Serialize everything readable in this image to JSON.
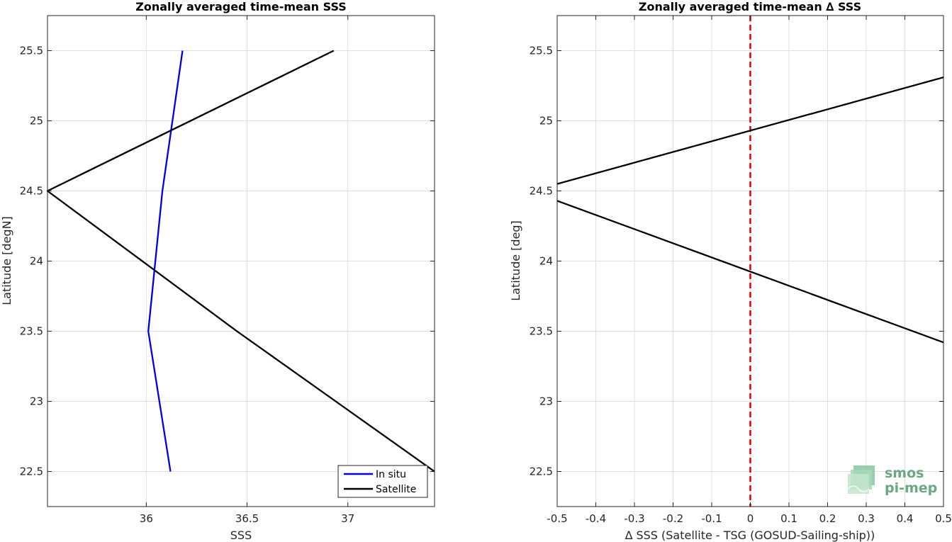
{
  "chart_data": [
    {
      "type": "line",
      "title": "Zonally averaged time-mean SSS",
      "xlabel": "SSS",
      "ylabel": "Latitude [degN]",
      "xlim": [
        35.51,
        37.43
      ],
      "ylim": [
        22.25,
        25.75
      ],
      "xticks": [
        36,
        36.5,
        37
      ],
      "xtick_labels": [
        "36",
        "36.5",
        "37"
      ],
      "yticks": [
        22.5,
        23,
        23.5,
        24,
        24.5,
        25,
        25.5
      ],
      "ytick_labels": [
        "22.5",
        "23",
        "23.5",
        "24",
        "24.5",
        "25",
        "25.5"
      ],
      "grid": true,
      "legend": "bottom-right",
      "series": [
        {
          "name": "In situ",
          "color": "#0000e6",
          "x": [
            36.12,
            36.01,
            36.08,
            36.18
          ],
          "y": [
            22.5,
            23.5,
            24.5,
            25.5
          ]
        },
        {
          "name": "Satellite",
          "color": "#000000",
          "x": [
            37.43,
            36.45,
            35.51,
            36.93
          ],
          "y": [
            22.5,
            23.5,
            24.5,
            25.5
          ]
        }
      ]
    },
    {
      "type": "line",
      "title": "Zonally averaged time-mean ∆ SSS",
      "xlabel": "∆ SSS (Satellite - TSG (GOSUD-Sailing-ship))",
      "ylabel": "Latitude [deg]",
      "xlim": [
        -0.5,
        0.5
      ],
      "ylim": [
        22.25,
        25.75
      ],
      "xticks": [
        -0.5,
        -0.4,
        -0.3,
        -0.2,
        -0.1,
        0,
        0.1,
        0.2,
        0.3,
        0.4,
        0.5
      ],
      "xtick_labels": [
        "-0.5",
        "-0.4",
        "-0.3",
        "-0.2",
        "-0.1",
        "0",
        "0.1",
        "0.2",
        "0.3",
        "0.4",
        "0.5"
      ],
      "yticks": [
        22.5,
        23,
        23.5,
        24,
        24.5,
        25,
        25.5
      ],
      "ytick_labels": [
        "22.5",
        "23",
        "23.5",
        "24",
        "24.5",
        "25",
        "25.5"
      ],
      "grid": true,
      "reference_line": {
        "x": 0,
        "color": "#e60000",
        "style": "dashed"
      },
      "series": [
        {
          "color": "#000000",
          "x": [
            -0.5,
            0.5
          ],
          "y": [
            24.55,
            25.31
          ]
        },
        {
          "color": "#000000",
          "x": [
            -0.5,
            0.5
          ],
          "y": [
            24.43,
            23.42
          ]
        }
      ]
    }
  ],
  "logo": {
    "line1": "smos",
    "line2": "pi-mep"
  }
}
